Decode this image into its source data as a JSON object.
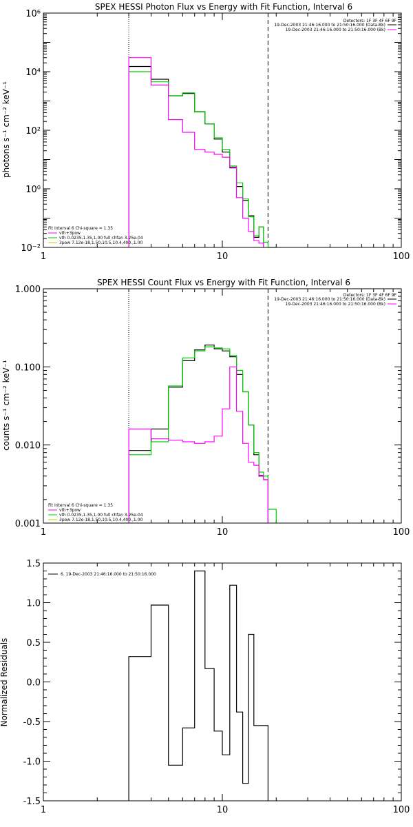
{
  "colors": {
    "background": "#ffffff",
    "axes": "#000000",
    "data": "#000000",
    "model": "#ff00ff",
    "total_fit": "#00cc00",
    "component_vth": "#00cc00",
    "component_pow": "#cccc00",
    "component_sum": "#ff00ff"
  },
  "chart_data": [
    {
      "type": "line",
      "title": "SPEX HESSI Photon Flux vs Energy with Fit Function, Interval 6",
      "xlabel": "",
      "ylabel": "photons s⁻¹ cm⁻² keV⁻¹",
      "xscale": "log",
      "yscale": "log",
      "xlim": [
        1,
        100
      ],
      "ylim": [
        0.01,
        1000000
      ],
      "x_ticks": [
        1,
        10,
        100
      ],
      "x_tick_labels": [
        "1",
        "10",
        "100"
      ],
      "y_ticks": [
        0.01,
        1,
        100,
        10000,
        1000000
      ],
      "y_tick_labels": [
        "10⁻²",
        "10⁰",
        "10²",
        "10⁴",
        "10⁶"
      ],
      "vlines": [
        {
          "x": 3,
          "style": "dotted"
        },
        {
          "x": 18,
          "style": "dashed"
        }
      ],
      "legend_header": "Detectors: 1F 3F 4F 6F 9F",
      "legend_entries": [
        {
          "label": "19-Dec-2003 21:46:16.000 to 21:50:16.000 (Data-Bk)",
          "color": "#000000"
        },
        {
          "label": "19-Dec-2003 21:46:16.000 to 21:50:16.000 (Bk)",
          "color": "#ff00ff"
        }
      ],
      "fit_header": "Fit Interval 6   Chi-square = 1.35",
      "fit_entries": [
        {
          "label": "vth+3pow",
          "color": "#ff00ff"
        },
        {
          "label": "vth 0.0235,1.35,1.00  full chfan 3.25e-04",
          "color": "#00cc00"
        },
        {
          "label": "3pow 7.12e-18,1.50,10.5,10.4,400.,1.00",
          "color": "#cccc00"
        }
      ],
      "bin_edges": [
        3,
        4,
        5,
        6,
        7,
        8,
        9,
        10,
        11,
        12,
        13,
        14,
        15,
        16,
        17,
        18,
        20
      ],
      "series": [
        {
          "name": "Data-Bk",
          "color": "#000000",
          "values": [
            15000,
            5500,
            1500,
            1800,
            430,
            165,
            50,
            18,
            5.2,
            1.2,
            0.4,
            0.12,
            0.022,
            0.05,
            null,
            null
          ]
        },
        {
          "name": "vth+3pow",
          "color": "#00cc00",
          "values": [
            10000,
            4500,
            1500,
            1900,
            420,
            165,
            55,
            22,
            6,
            1.6,
            0.45,
            0.11,
            0.025,
            0.05,
            0.015,
            0.009
          ]
        },
        {
          "name": "Bk",
          "color": "#ff00ff",
          "values": [
            30000,
            3500,
            230,
            85,
            22,
            18,
            15,
            12,
            5.5,
            0.5,
            0.1,
            0.035,
            0.017,
            0.014,
            null,
            null
          ]
        }
      ]
    },
    {
      "type": "line",
      "title": "SPEX HESSI Count Flux vs Energy with Fit Function, Interval 6",
      "xlabel": "",
      "ylabel": "counts s⁻¹ cm⁻² keV⁻¹",
      "xscale": "log",
      "yscale": "log",
      "xlim": [
        1,
        100
      ],
      "ylim": [
        0.001,
        1.0
      ],
      "x_ticks": [
        1,
        10,
        100
      ],
      "x_tick_labels": [
        "1",
        "10",
        "100"
      ],
      "y_ticks": [
        0.001,
        0.01,
        0.1,
        1.0
      ],
      "y_tick_labels": [
        "0.001",
        "0.010",
        "0.100",
        "1.000"
      ],
      "vlines": [
        {
          "x": 3,
          "style": "dotted"
        },
        {
          "x": 18,
          "style": "dashed"
        }
      ],
      "legend_header": "Detectors: 1F 3F 4F 6F 9F",
      "legend_entries": [
        {
          "label": "19-Dec-2003 21:46:16.000 to 21:50:16.000 (Data-Bk)",
          "color": "#000000"
        },
        {
          "label": "19-Dec-2003 21:46:16.000 to 21:50:16.000 (Bk)",
          "color": "#ff00ff"
        }
      ],
      "fit_header": "Fit Interval 6   Chi-square = 1.35",
      "fit_entries": [
        {
          "label": "vth+3pow",
          "color": "#ff00ff"
        },
        {
          "label": "vth 0.0235,1.35,1.00  full chfan 3.25e-04",
          "color": "#00cc00"
        },
        {
          "label": "3pow 7.12e-18,1.50,10.5,10.4,400.,1.00",
          "color": "#cccc00"
        }
      ],
      "bin_edges": [
        3,
        4,
        5,
        6,
        7,
        8,
        9,
        10,
        11,
        12,
        13,
        14,
        15,
        16,
        17,
        18,
        20
      ],
      "series": [
        {
          "name": "Data-Bk",
          "color": "#000000",
          "values": [
            0.0085,
            0.016,
            0.055,
            0.12,
            0.165,
            0.19,
            0.17,
            0.16,
            0.135,
            0.08,
            0.048,
            0.018,
            0.0075,
            0.004,
            0.0036,
            null
          ]
        },
        {
          "name": "vth+3pow",
          "color": "#00cc00",
          "values": [
            0.0075,
            0.011,
            0.057,
            0.13,
            0.16,
            0.18,
            0.175,
            0.17,
            0.14,
            0.09,
            0.048,
            0.018,
            0.008,
            0.0045,
            0.004,
            0.0015
          ]
        },
        {
          "name": "Bk",
          "color": "#ff00ff",
          "values": [
            0.016,
            0.012,
            0.0115,
            0.011,
            0.0105,
            0.011,
            0.013,
            0.029,
            0.1,
            0.027,
            0.0105,
            0.006,
            0.0055,
            0.0041,
            0.0036,
            null
          ]
        }
      ]
    },
    {
      "type": "line",
      "title": "",
      "xlabel": "",
      "ylabel": "Normalized Residuals",
      "xscale": "log",
      "yscale": "linear",
      "xlim": [
        1,
        100
      ],
      "ylim": [
        -1.5,
        1.5
      ],
      "x_ticks": [
        1,
        10,
        100
      ],
      "x_tick_labels": [
        "1",
        "10",
        "100"
      ],
      "y_ticks": [
        -1.5,
        -1.0,
        -0.5,
        0.0,
        0.5,
        1.0,
        1.5
      ],
      "y_tick_labels": [
        "-1.5",
        "-1.0",
        "-0.5",
        "0.0",
        "0.5",
        "1.0",
        "1.5"
      ],
      "legend_entries": [
        {
          "label": "6. 19-Dec-2003 21:46:16.000 to 21:50:16.000",
          "color": "#000000"
        }
      ],
      "bin_edges": [
        3,
        4,
        5,
        6,
        7,
        8,
        9,
        10,
        11,
        12,
        13,
        14,
        15,
        16,
        17,
        18
      ],
      "series": [
        {
          "name": "6. 19-Dec-2003 21:46:16.000 to 21:50:16.000",
          "color": "#000000",
          "values": [
            0.32,
            0.97,
            -1.05,
            -0.58,
            1.4,
            0.17,
            -0.62,
            -0.92,
            1.22,
            -0.38,
            -1.28,
            0.6,
            -0.55,
            -0.55,
            -0.55
          ]
        }
      ]
    }
  ]
}
